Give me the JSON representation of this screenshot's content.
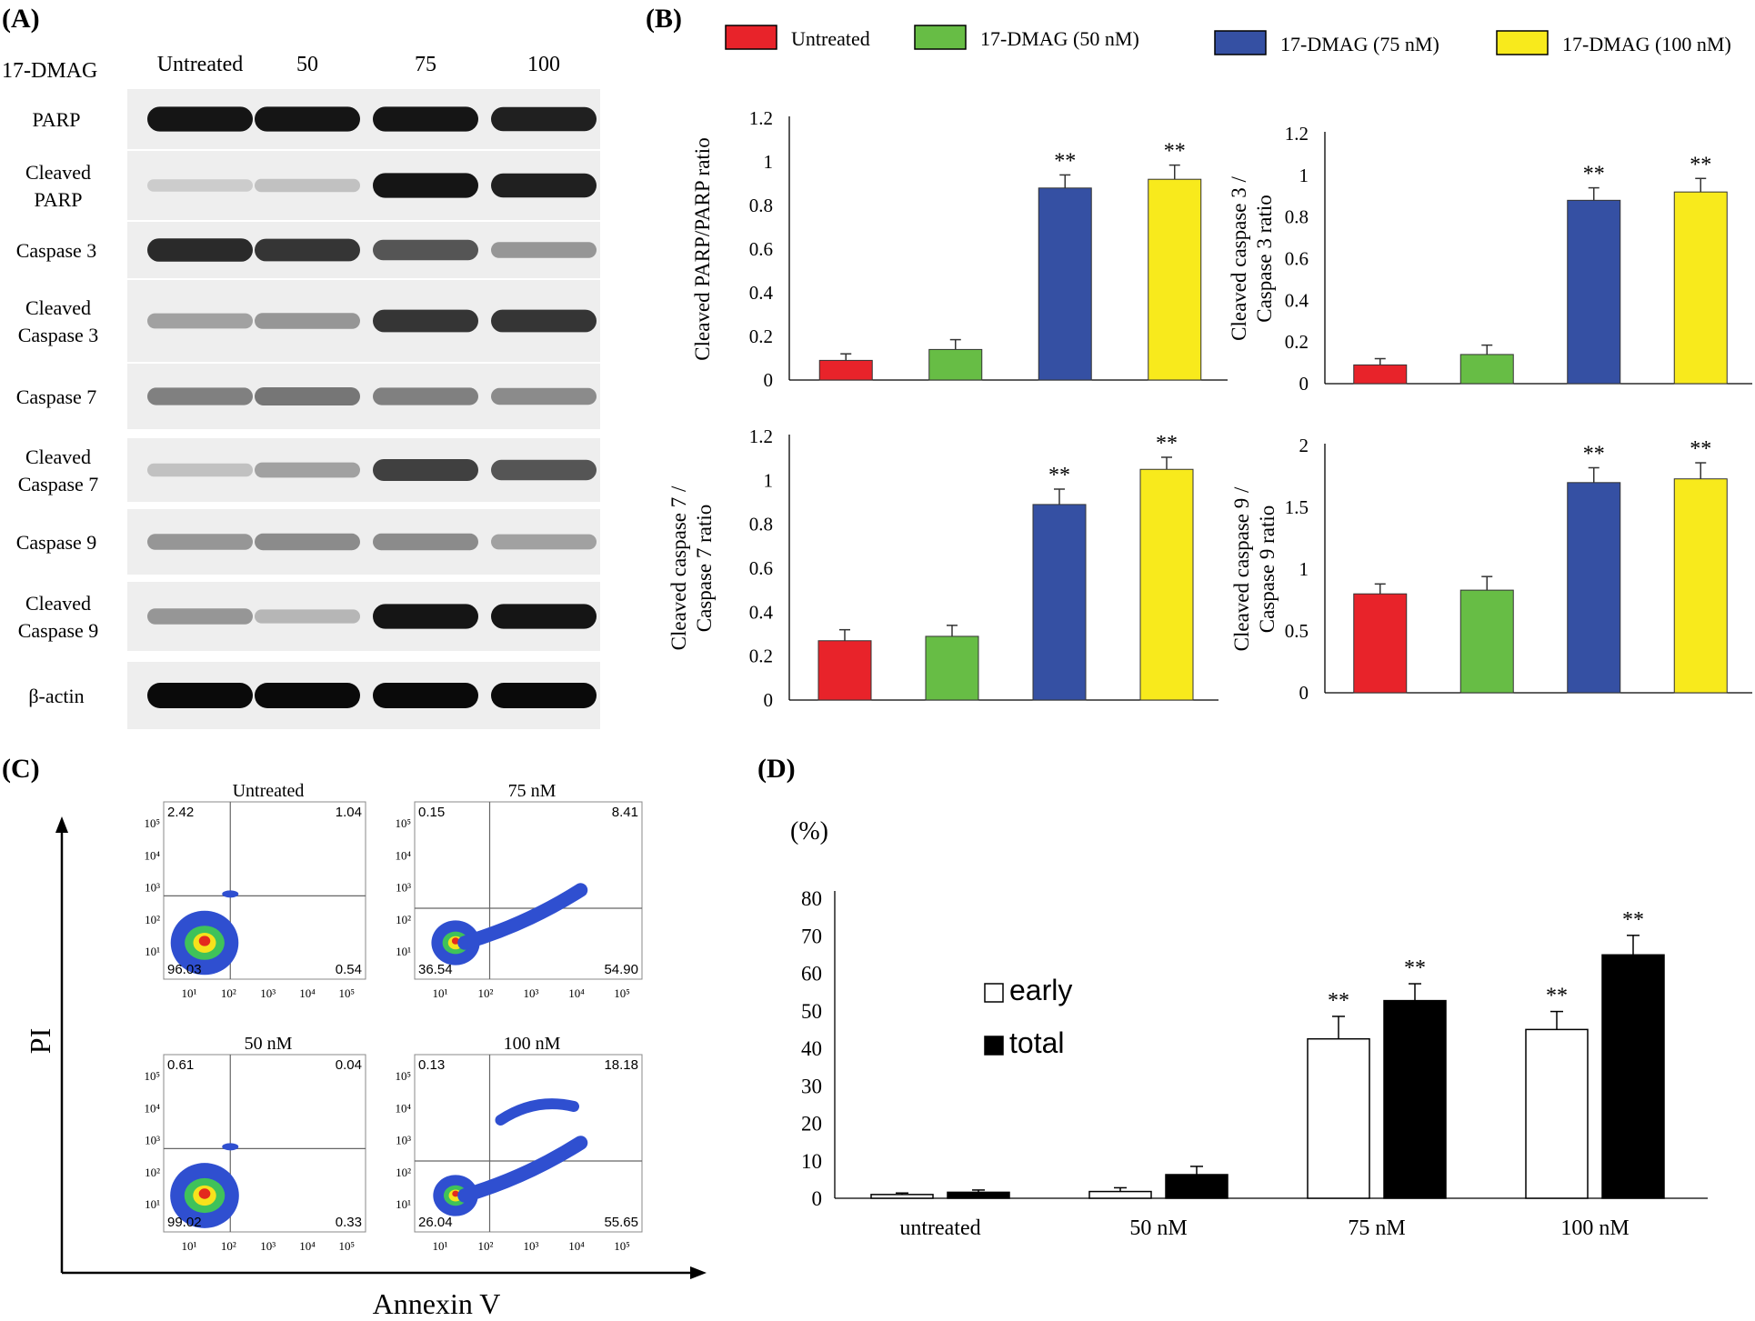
{
  "panels": {
    "A": {
      "label": "(A)",
      "treatment_label": "17-DMAG",
      "lanes": [
        "Untreated",
        "50",
        "75",
        "100"
      ],
      "blots": [
        {
          "name": "PARP",
          "intensity": [
            0.95,
            0.95,
            0.95,
            0.9
          ]
        },
        {
          "name": "Cleaved PARP",
          "intensity": [
            0.1,
            0.15,
            0.95,
            0.9
          ]
        },
        {
          "name": "Caspase 3",
          "intensity": [
            0.85,
            0.8,
            0.65,
            0.35
          ]
        },
        {
          "name": "Cleaved Caspase 3",
          "intensity": [
            0.3,
            0.35,
            0.8,
            0.8
          ]
        },
        {
          "name": "Caspase 7",
          "intensity": [
            0.45,
            0.5,
            0.45,
            0.4
          ]
        },
        {
          "name": "Cleaved Caspase 7",
          "intensity": [
            0.15,
            0.3,
            0.75,
            0.65
          ]
        },
        {
          "name": "Caspase 9",
          "intensity": [
            0.35,
            0.4,
            0.4,
            0.3
          ]
        },
        {
          "name": "Cleaved Caspase 9",
          "intensity": [
            0.35,
            0.2,
            0.95,
            0.95
          ]
        },
        {
          "name": "β-actin",
          "intensity": [
            1.0,
            1.0,
            1.0,
            1.0
          ]
        }
      ]
    },
    "B": {
      "label": "(B)"
    },
    "C": {
      "label": "(C)",
      "x_axis_label": "Annexin V",
      "y_axis_label": "PI",
      "tick_labels": [
        "10¹",
        "10²",
        "10³",
        "10⁴",
        "10⁵"
      ],
      "plots": [
        {
          "title": "Untreated",
          "ul": "2.42",
          "ur": "1.04",
          "ll": "96.03",
          "lr": "0.54",
          "ll_frac": 0.9603,
          "ur_frac": 0.0104,
          "ul_frac": 0.0242,
          "lr_frac": 0.0054
        },
        {
          "title": "75 nM",
          "ul": "0.15",
          "ur": "8.41",
          "ll": "36.54",
          "lr": "54.90",
          "ll_frac": 0.3654,
          "ur_frac": 0.0841,
          "ul_frac": 0.0015,
          "lr_frac": 0.549
        },
        {
          "title": "50 nM",
          "ul": "0.61",
          "ur": "0.04",
          "ll": "99.02",
          "lr": "0.33",
          "ll_frac": 0.9902,
          "ur_frac": 0.0004,
          "ul_frac": 0.0061,
          "lr_frac": 0.0033
        },
        {
          "title": "100 nM",
          "ul": "0.13",
          "ur": "18.18",
          "ll": "26.04",
          "lr": "55.65",
          "ll_frac": 0.2604,
          "ur_frac": 0.1818,
          "ul_frac": 0.0013,
          "lr_frac": 0.5565
        }
      ]
    },
    "D": {
      "label": "(D)"
    }
  },
  "colors": {
    "untreated": "#e8232a",
    "dmag50": "#67bd45",
    "dmag75": "#3550a3",
    "dmag100": "#f8ea1c",
    "early": "#ffffff",
    "total": "#000000"
  },
  "chart_data": [
    {
      "id": "B-legend",
      "type": "legend",
      "entries": [
        "Untreated",
        "17-DMAG (50 nM)",
        "17-DMAG (75 nM)",
        "17-DMAG (100 nM)"
      ]
    },
    {
      "id": "B1",
      "type": "bar",
      "ylabel": "Cleaved PARP/PARP ratio",
      "categories": [
        "Untreated",
        "17-DMAG (50 nM)",
        "17-DMAG (75 nM)",
        "17-DMAG (100 nM)"
      ],
      "values": [
        0.09,
        0.14,
        0.88,
        0.92
      ],
      "errors": [
        0.03,
        0.045,
        0.06,
        0.065
      ],
      "significance": [
        "",
        "",
        "**",
        "**"
      ],
      "ylim": [
        0,
        1.2
      ],
      "yticks": [
        0,
        0.2,
        0.4,
        0.6,
        0.8,
        1,
        1.2
      ],
      "ytick_labels": [
        "0",
        "0.2",
        "0.4",
        "0.6",
        "0.8",
        "1",
        "1.2"
      ]
    },
    {
      "id": "B2",
      "type": "bar",
      "ylabel": "Cleaved caspase 3 / Caspase 3 ratio",
      "ylabel_lines": [
        "Cleaved caspase 3 /",
        "Caspase 3 ratio"
      ],
      "categories": [
        "Untreated",
        "17-DMAG (50 nM)",
        "17-DMAG (75 nM)",
        "17-DMAG (100 nM)"
      ],
      "values": [
        0.09,
        0.14,
        0.88,
        0.92
      ],
      "errors": [
        0.03,
        0.045,
        0.06,
        0.065
      ],
      "significance": [
        "",
        "",
        "**",
        "**"
      ],
      "ylim": [
        0,
        1.2
      ],
      "yticks": [
        0,
        0.2,
        0.4,
        0.6,
        0.8,
        1,
        1.2
      ],
      "ytick_labels": [
        "0",
        "0.2",
        "0.4",
        "0.6",
        "0.8",
        "1",
        "1.2"
      ]
    },
    {
      "id": "B3",
      "type": "bar",
      "ylabel": "Cleaved caspase 7 / Caspase 7 ratio",
      "ylabel_lines": [
        "Cleaved caspase 7 /",
        "Caspase 7 ratio"
      ],
      "categories": [
        "Untreated",
        "17-DMAG (50 nM)",
        "17-DMAG (75 nM)",
        "17-DMAG (100 nM)"
      ],
      "values": [
        0.27,
        0.29,
        0.89,
        1.05
      ],
      "errors": [
        0.05,
        0.05,
        0.07,
        0.055
      ],
      "significance": [
        "",
        "",
        "**",
        "**"
      ],
      "ylim": [
        0,
        1.2
      ],
      "yticks": [
        0,
        0.2,
        0.4,
        0.6,
        0.8,
        1,
        1.2
      ],
      "ytick_labels": [
        "0",
        "0.2",
        "0.4",
        "0.6",
        "0.8",
        "1",
        "1.2"
      ]
    },
    {
      "id": "B4",
      "type": "bar",
      "ylabel": "Cleaved caspase 9 / Caspase 9 ratio",
      "ylabel_lines": [
        "Cleaved caspase 9 /",
        "Caspase 9 ratio"
      ],
      "categories": [
        "Untreated",
        "17-DMAG (50 nM)",
        "17-DMAG (75 nM)",
        "17-DMAG (100 nM)"
      ],
      "values": [
        0.8,
        0.83,
        1.7,
        1.73
      ],
      "errors": [
        0.08,
        0.11,
        0.12,
        0.13
      ],
      "significance": [
        "",
        "",
        "**",
        "**"
      ],
      "ylim": [
        0,
        2
      ],
      "yticks": [
        0,
        0.5,
        1,
        1.5,
        2
      ],
      "ytick_labels": [
        "0",
        "0.5",
        "1",
        "1.5",
        "2"
      ]
    },
    {
      "id": "D",
      "type": "bar",
      "ylabel": "(%)",
      "categories": [
        "untreated",
        "50 nM",
        "75 nM",
        "100 nM"
      ],
      "series": [
        {
          "name": "early",
          "values": [
            1.0,
            1.8,
            42.5,
            45.0
          ],
          "errors": [
            0.4,
            1.0,
            6.0,
            4.8
          ],
          "significance": [
            "",
            "",
            "**",
            "**"
          ]
        },
        {
          "name": "total",
          "values": [
            1.6,
            6.3,
            52.7,
            64.9
          ],
          "errors": [
            0.6,
            2.2,
            4.5,
            5.2
          ],
          "significance": [
            "",
            "",
            "**",
            "**"
          ]
        }
      ],
      "ylim": [
        0,
        80
      ],
      "yticks": [
        0,
        10,
        20,
        30,
        40,
        50,
        60,
        70,
        80
      ],
      "ytick_labels": [
        "0",
        "10",
        "20",
        "30",
        "40",
        "50",
        "60",
        "70",
        "80"
      ]
    }
  ]
}
